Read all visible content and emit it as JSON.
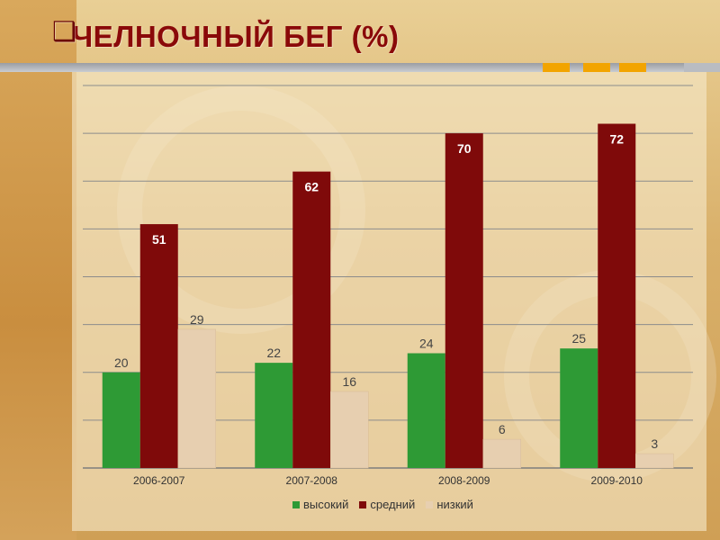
{
  "slide": {
    "title": "ЧЕЛНОЧНЫЙ БЕГ (%)",
    "bullet_icon": "square-bullet-icon"
  },
  "colors": {
    "title": "#8a0909",
    "accent": "#f2a400",
    "series": [
      "#2e9a35",
      "#7f0a0a",
      "#e7cfb0"
    ]
  },
  "chart_data": {
    "type": "bar",
    "title": "",
    "xlabel": "",
    "ylabel": "",
    "ylim": [
      0,
      80
    ],
    "grid": true,
    "legend_position": "bottom",
    "categories": [
      "2006-2007",
      "2007-2008",
      "2008-2009",
      "2009-2010"
    ],
    "series": [
      {
        "name": "высокий",
        "color": "#2e9a35",
        "values": [
          20,
          22,
          24,
          25
        ]
      },
      {
        "name": "средний",
        "color": "#7f0a0a",
        "values": [
          51,
          62,
          70,
          72
        ]
      },
      {
        "name": "низкий",
        "color": "#e7cfb0",
        "values": [
          29,
          16,
          6,
          3
        ]
      }
    ]
  }
}
